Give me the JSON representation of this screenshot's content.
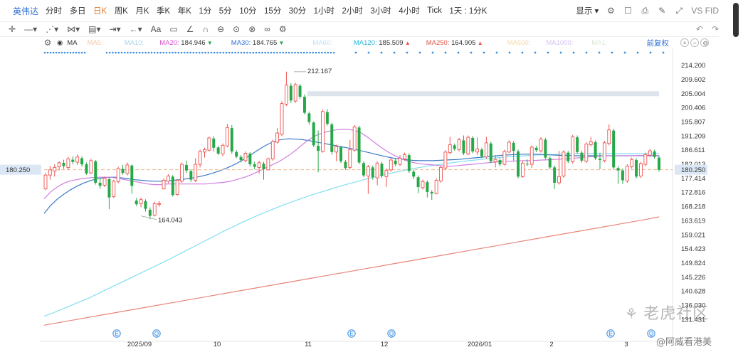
{
  "topbar": {
    "ticker": "英伟达",
    "timeframes": [
      "分时",
      "多日",
      "日K",
      "周K",
      "月K",
      "季K",
      "年K",
      "1分",
      "5分",
      "10分",
      "15分",
      "30分",
      "1小时",
      "2小时",
      "3小时",
      "4小时",
      "Tick",
      "1天 : 1分K"
    ],
    "active_index": 2,
    "display_label": "显示",
    "compare_label": "VS FID"
  },
  "ma_bar": {
    "type_label": "MA",
    "items": [
      {
        "label": "MA5:",
        "value": "",
        "color": "#f4c9a8"
      },
      {
        "label": "MA10:",
        "value": "",
        "color": "#a9d4ee"
      },
      {
        "label": "MA20:",
        "value": "184.946",
        "color": "#d64fcc",
        "arrow": "▼"
      },
      {
        "label": "MA30:",
        "value": "184.765",
        "color": "#2f6fd6",
        "arrow": "▼"
      },
      {
        "label": "MA60:",
        "value": "",
        "color": "#bfe1f5"
      },
      {
        "label": "MA120:",
        "value": "185.509",
        "color": "#25b6d9",
        "arrow": "▲"
      },
      {
        "label": "MA250:",
        "value": "164.905",
        "color": "#e0584c",
        "arrow": "▲"
      },
      {
        "label": "MA500:",
        "value": "",
        "color": "#f6d8a8"
      },
      {
        "label": "MA1000:",
        "value": "",
        "color": "#d4c1ee"
      },
      {
        "label": "MA1:",
        "value": "",
        "color": "#d9e7d6"
      }
    ],
    "adjust_label": "前复权"
  },
  "chart_data": {
    "type": "candlestick",
    "y_ticks": [
      214.2,
      209.602,
      205.004,
      200.406,
      195.807,
      191.209,
      186.611,
      182.013,
      177.414,
      172.816,
      168.218,
      163.619,
      159.021,
      154.423,
      149.824,
      145.226,
      140.628,
      136.03,
      131.431
    ],
    "ylim": [
      128.5,
      217.0
    ],
    "x_ticks": [
      "2025/09",
      "10",
      "11",
      "12",
      "2026/01",
      "2",
      "3"
    ],
    "current_price": "180.250",
    "high_annotation": "212.167",
    "low_annotation": "164.043",
    "up_color": "#ef5350",
    "down_color": "#26a848",
    "candles": [
      [
        174.0,
        178.5,
        173.5,
        179.2
      ],
      [
        178.5,
        180.2,
        177.0,
        181.5
      ],
      [
        179.8,
        181.0,
        178.0,
        182.0
      ],
      [
        181.2,
        182.5,
        180.0,
        183.0
      ],
      [
        182.5,
        181.4,
        180.5,
        183.5
      ],
      [
        181.0,
        183.8,
        180.2,
        184.5
      ],
      [
        183.5,
        182.8,
        182.0,
        184.6
      ],
      [
        182.7,
        184.4,
        181.8,
        185.2
      ],
      [
        184.0,
        182.0,
        181.2,
        184.6
      ],
      [
        182.0,
        179.0,
        178.6,
        182.6
      ],
      [
        179.2,
        183.2,
        178.8,
        183.8
      ],
      [
        183.0,
        176.0,
        175.4,
        183.4
      ],
      [
        176.0,
        175.0,
        174.0,
        177.2
      ],
      [
        175.2,
        177.5,
        174.6,
        178.0
      ],
      [
        177.2,
        171.2,
        167.4,
        177.8
      ],
      [
        171.5,
        176.5,
        171.0,
        177.0
      ],
      [
        176.4,
        180.6,
        175.8,
        181.2
      ],
      [
        180.5,
        179.2,
        178.6,
        181.8
      ],
      [
        179.0,
        181.8,
        178.4,
        182.6
      ],
      [
        181.6,
        175.0,
        172.4,
        182.0
      ],
      [
        170.2,
        169.0,
        168.4,
        171.0
      ],
      [
        169.2,
        170.5,
        168.0,
        171.2
      ],
      [
        170.0,
        167.5,
        166.6,
        170.6
      ],
      [
        167.2,
        165.2,
        164.1,
        168.0
      ],
      [
        165.4,
        169.2,
        165.0,
        169.8
      ],
      [
        169.0,
        169.2,
        168.2,
        170.0
      ],
      [
        174.0,
        176.8,
        173.8,
        177.4
      ],
      [
        176.5,
        178.2,
        175.8,
        178.8
      ],
      [
        178.0,
        172.0,
        171.5,
        178.5
      ],
      [
        172.2,
        176.8,
        171.8,
        177.2
      ],
      [
        176.5,
        182.0,
        176.0,
        182.6
      ],
      [
        181.8,
        180.0,
        179.2,
        183.2
      ],
      [
        179.8,
        177.0,
        176.2,
        180.4
      ],
      [
        176.8,
        182.0,
        176.2,
        184.0
      ],
      [
        182.0,
        186.2,
        181.0,
        186.8
      ],
      [
        186.0,
        186.8,
        184.2,
        187.4
      ],
      [
        186.6,
        190.6,
        186.2,
        191.0
      ],
      [
        190.4,
        187.4,
        186.2,
        191.2
      ],
      [
        187.5,
        185.5,
        185.0,
        188.0
      ],
      [
        185.4,
        188.2,
        184.6,
        188.8
      ],
      [
        188.0,
        194.0,
        187.6,
        195.2
      ],
      [
        193.8,
        186.2,
        185.4,
        194.8
      ],
      [
        186.0,
        184.5,
        184.0,
        186.6
      ],
      [
        184.4,
        183.4,
        182.6,
        185.0
      ],
      [
        183.2,
        185.6,
        182.6,
        186.2
      ],
      [
        185.5,
        182.0,
        181.2,
        186.0
      ],
      [
        182.0,
        181.2,
        180.4,
        182.8
      ],
      [
        181.0,
        182.5,
        179.0,
        183.2
      ],
      [
        182.2,
        180.4,
        177.0,
        182.8
      ],
      [
        180.2,
        183.8,
        180.0,
        184.2
      ],
      [
        183.8,
        189.4,
        183.2,
        190.0
      ],
      [
        189.2,
        192.2,
        188.8,
        193.8
      ],
      [
        191.8,
        201.8,
        191.2,
        202.6
      ],
      [
        201.6,
        207.8,
        201.0,
        212.2
      ],
      [
        207.6,
        202.8,
        202.0,
        208.4
      ],
      [
        202.6,
        208.0,
        202.0,
        208.6
      ],
      [
        207.6,
        204.0,
        203.4,
        208.2
      ],
      [
        204.0,
        198.8,
        198.2,
        204.8
      ],
      [
        198.6,
        195.8,
        195.0,
        199.2
      ],
      [
        195.6,
        188.2,
        187.6,
        196.0
      ],
      [
        188.0,
        186.4,
        179.4,
        193.0
      ],
      [
        186.2,
        199.2,
        185.8,
        199.8
      ],
      [
        199.0,
        195.2,
        194.6,
        200.0
      ],
      [
        195.0,
        186.0,
        185.2,
        195.6
      ],
      [
        186.0,
        187.8,
        183.0,
        188.4
      ],
      [
        187.6,
        183.0,
        182.4,
        188.0
      ],
      [
        182.8,
        180.8,
        180.2,
        183.4
      ],
      [
        181.0,
        186.8,
        180.4,
        190.0
      ],
      [
        186.6,
        194.2,
        186.2,
        194.8
      ],
      [
        194.0,
        182.6,
        182.0,
        194.6
      ],
      [
        182.4,
        178.4,
        177.8,
        183.0
      ],
      [
        178.2,
        181.2,
        172.4,
        181.8
      ],
      [
        181.0,
        177.8,
        177.0,
        181.6
      ],
      [
        177.6,
        182.4,
        175.2,
        183.0
      ],
      [
        182.2,
        178.2,
        177.6,
        182.8
      ],
      [
        178.0,
        180.0,
        174.6,
        180.6
      ],
      [
        180.2,
        183.4,
        179.6,
        184.0
      ],
      [
        183.2,
        182.0,
        181.4,
        183.8
      ],
      [
        182.0,
        184.0,
        181.4,
        185.0
      ],
      [
        183.8,
        185.2,
        183.2,
        185.8
      ],
      [
        185.0,
        179.8,
        179.2,
        185.6
      ],
      [
        179.6,
        178.0,
        177.2,
        180.2
      ],
      [
        177.8,
        174.6,
        172.6,
        178.4
      ],
      [
        174.4,
        176.4,
        173.8,
        177.0
      ],
      [
        176.2,
        173.0,
        171.2,
        176.8
      ],
      [
        173.0,
        172.5,
        170.4,
        173.6
      ],
      [
        172.5,
        176.8,
        172.2,
        177.4
      ],
      [
        176.6,
        181.0,
        176.0,
        181.6
      ],
      [
        180.8,
        186.0,
        180.2,
        186.6
      ],
      [
        185.8,
        188.4,
        185.2,
        191.0
      ],
      [
        188.2,
        187.0,
        186.4,
        188.8
      ],
      [
        186.8,
        190.0,
        186.2,
        190.6
      ],
      [
        189.8,
        185.6,
        185.0,
        191.4
      ],
      [
        185.4,
        190.8,
        185.0,
        191.4
      ],
      [
        190.6,
        186.2,
        185.6,
        191.2
      ],
      [
        186.0,
        187.0,
        185.0,
        190.8
      ],
      [
        186.8,
        184.6,
        184.0,
        187.4
      ],
      [
        184.4,
        189.0,
        183.8,
        191.0
      ],
      [
        188.8,
        183.0,
        182.4,
        189.4
      ],
      [
        182.8,
        183.6,
        181.0,
        185.0
      ],
      [
        183.4,
        182.0,
        181.4,
        184.0
      ],
      [
        182.0,
        186.2,
        181.6,
        186.8
      ],
      [
        186.0,
        189.2,
        185.6,
        189.8
      ],
      [
        189.0,
        186.4,
        183.2,
        189.6
      ],
      [
        186.2,
        178.0,
        177.4,
        186.8
      ],
      [
        178.0,
        182.4,
        177.6,
        183.0
      ],
      [
        182.2,
        182.0,
        181.4,
        183.6
      ],
      [
        182.0,
        187.6,
        180.8,
        188.2
      ],
      [
        187.4,
        186.6,
        186.0,
        188.0
      ],
      [
        186.4,
        190.2,
        185.8,
        190.8
      ],
      [
        190.0,
        184.2,
        183.6,
        190.6
      ],
      [
        184.0,
        181.0,
        180.4,
        184.6
      ],
      [
        181.0,
        176.0,
        174.0,
        181.6
      ],
      [
        176.0,
        178.0,
        175.4,
        186.4
      ],
      [
        178.2,
        186.0,
        177.6,
        186.6
      ],
      [
        185.8,
        183.0,
        182.4,
        186.4
      ],
      [
        182.8,
        191.0,
        182.2,
        191.6
      ],
      [
        190.8,
        186.0,
        185.4,
        191.4
      ],
      [
        185.8,
        183.2,
        182.6,
        186.4
      ],
      [
        183.0,
        188.6,
        182.4,
        189.2
      ],
      [
        188.4,
        189.4,
        187.8,
        191.0
      ],
      [
        189.2,
        184.0,
        183.4,
        189.8
      ],
      [
        183.8,
        183.4,
        180.4,
        185.8
      ],
      [
        183.2,
        189.0,
        182.6,
        189.6
      ],
      [
        188.8,
        193.2,
        188.2,
        195.0
      ],
      [
        193.0,
        181.0,
        180.4,
        193.6
      ],
      [
        180.8,
        180.0,
        175.6,
        181.4
      ],
      [
        180.0,
        176.8,
        175.6,
        180.6
      ],
      [
        176.6,
        181.4,
        176.0,
        182.0
      ],
      [
        181.2,
        183.6,
        180.6,
        184.2
      ],
      [
        183.4,
        178.0,
        177.4,
        184.0
      ],
      [
        178.2,
        182.2,
        177.6,
        182.8
      ],
      [
        182.0,
        185.2,
        181.4,
        185.8
      ],
      [
        185.0,
        186.4,
        184.4,
        187.0
      ],
      [
        186.2,
        184.4,
        183.8,
        186.8
      ],
      [
        184.2,
        180.2,
        179.6,
        184.8
      ]
    ],
    "ma20": [
      170.8,
      173.0,
      174.6,
      175.8,
      176.6,
      177.0,
      177.4,
      177.6,
      177.8,
      177.8,
      177.8,
      177.6,
      177.2,
      176.8,
      176.4,
      176.0,
      175.6,
      175.4,
      175.4,
      175.6,
      175.6,
      175.6,
      175.6,
      175.6,
      175.6,
      175.6,
      175.8,
      176.0,
      176.2,
      176.6,
      177.2,
      177.8,
      178.6,
      179.6,
      180.6,
      181.6,
      182.6,
      183.8,
      185.2,
      186.8,
      188.6,
      190.2,
      191.4,
      192.2,
      192.8,
      193.2,
      193.4,
      193.4,
      193.0,
      192.2,
      190.8,
      189.2,
      187.6,
      186.2,
      185.0,
      184.0,
      183.2,
      182.6,
      182.2,
      182.0,
      181.8,
      181.6,
      181.4,
      181.4,
      181.6,
      181.8,
      182.0,
      182.2,
      182.4,
      182.6,
      182.8,
      182.9,
      183.0,
      183.1,
      183.2,
      183.2,
      183.3,
      183.4,
      183.5,
      183.6,
      183.7,
      183.8,
      184.0,
      184.2,
      184.4,
      184.6,
      184.7,
      184.8,
      184.8,
      184.8,
      184.8,
      184.8,
      184.9,
      184.9,
      184.9,
      184.9
    ],
    "ma30": [
      166.0,
      168.6,
      170.6,
      172.2,
      173.6,
      174.8,
      175.8,
      176.6,
      177.2,
      177.6,
      177.8,
      177.8,
      177.6,
      177.3,
      177.0,
      176.8,
      176.6,
      176.5,
      176.5,
      176.6,
      176.8,
      177.0,
      177.3,
      177.6,
      178.0,
      178.5,
      179.1,
      179.8,
      180.6,
      181.5,
      182.6,
      183.8,
      185.2,
      186.6,
      187.9,
      189.0,
      189.8,
      190.2,
      190.3,
      190.2,
      190.0,
      189.7,
      189.3,
      188.9,
      188.5,
      188.1,
      187.7,
      187.3,
      186.9,
      186.4,
      185.9,
      185.4,
      184.9,
      184.4,
      184.0,
      183.7,
      183.5,
      183.3,
      183.2,
      183.2,
      183.2,
      183.3,
      183.4,
      183.5,
      183.6,
      183.8,
      184.0,
      184.2,
      184.4,
      184.6,
      184.8,
      185.0,
      185.1,
      185.2,
      185.3,
      185.3,
      185.3,
      185.2,
      185.1,
      185.0,
      184.9,
      184.9,
      184.8,
      184.8,
      184.8,
      184.8,
      184.8,
      184.8,
      184.8,
      184.8,
      184.8,
      184.8,
      184.8,
      184.8,
      184.8,
      184.8
    ],
    "ma120": [
      132.5,
      133.6,
      134.8,
      136.0,
      137.2,
      138.4,
      139.8,
      141.2,
      142.6,
      144.0,
      145.4,
      146.8,
      148.2,
      149.6,
      151.0,
      152.5,
      154.0,
      155.5,
      157.0,
      158.5,
      160.0,
      161.4,
      162.8,
      164.1,
      165.4,
      166.6,
      167.8,
      168.9,
      170.0,
      171.0,
      172.0,
      172.9,
      173.8,
      174.7,
      175.5,
      176.3,
      177.1,
      177.8,
      178.5,
      179.2,
      179.8,
      180.4,
      180.9,
      181.4,
      181.8,
      182.2,
      182.6,
      183.0,
      183.3,
      183.6,
      183.9,
      184.2,
      184.4,
      184.6,
      184.8,
      185.0,
      185.1,
      185.2,
      185.3,
      185.4,
      185.5,
      185.5,
      185.5,
      185.5,
      185.5,
      185.5,
      185.5,
      185.5,
      185.5,
      185.5
    ],
    "ma250": [
      129.6,
      130.4,
      131.2,
      132.0,
      132.8,
      133.6,
      134.4,
      135.2,
      136.0,
      136.8,
      137.6,
      138.4,
      139.2,
      140.0,
      140.8,
      141.6,
      142.4,
      143.2,
      144.0,
      144.8,
      145.6,
      146.4,
      147.2,
      148.0,
      148.8,
      149.6,
      150.4,
      151.2,
      152.0,
      152.8,
      153.6,
      154.4,
      155.2,
      156.0,
      156.8,
      157.6,
      158.4,
      159.2,
      160.0,
      160.8,
      161.6,
      162.4,
      163.2,
      164.0,
      164.9
    ],
    "resistance_band": [
      204.2,
      205.8
    ]
  },
  "event_markers": [
    {
      "label": "E"
    },
    {
      "label": "Q"
    },
    {
      "label": "E"
    },
    {
      "label": "Q"
    },
    {
      "label": "E"
    },
    {
      "label": "Q"
    }
  ],
  "axis_tools": [
    "+",
    "−",
    "⊖"
  ],
  "watermark": {
    "brand": "老虎社区",
    "handle": "@阿威看港美"
  }
}
